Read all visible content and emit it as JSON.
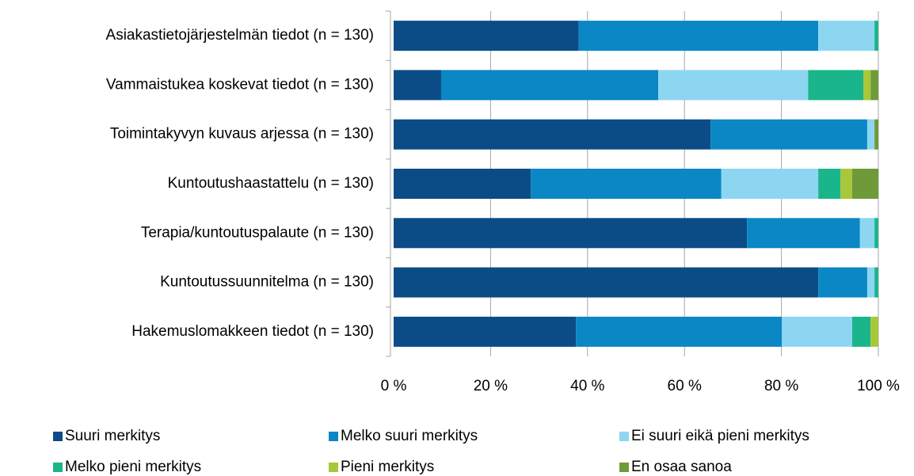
{
  "chart_data": {
    "type": "stacked-bar-horizontal",
    "categories": [
      "Asiakastietojärjestelmän tiedot (n = 130)",
      "Vammaistukea koskevat tiedot (n = 130)",
      "Toimintakyvyn kuvaus arjessa (n = 130)",
      "Kuntoutushaastattelu (n = 130)",
      "Terapia/kuntoutuspalaute (n = 130)",
      "Kuntoutussuunnitelma (n = 130)",
      "Hakemuslomakkeen tiedot (n = 130)"
    ],
    "series": [
      {
        "name": "Suuri merkitys",
        "color": "#0b4c86",
        "values": [
          38.2,
          9.8,
          65.4,
          28.3,
          72.9,
          87.6,
          37.6
        ]
      },
      {
        "name": "Melko suuri merkitys",
        "color": "#0a87c4",
        "values": [
          49.4,
          44.8,
          32.3,
          39.3,
          23.3,
          10.1,
          42.5
        ]
      },
      {
        "name": "Ei suuri eikä pieni merkitys",
        "color": "#8dd6f2",
        "values": [
          11.6,
          30.9,
          1.5,
          20,
          3,
          1.5,
          14.5
        ]
      },
      {
        "name": "Melko pieni merkitys",
        "color": "#1bb58b",
        "values": [
          0.8,
          11.4,
          0,
          4.6,
          0.8,
          0.8,
          3.8
        ]
      },
      {
        "name": "Pieni merkitys",
        "color": "#a8c73a",
        "values": [
          0,
          1.5,
          0,
          2.4,
          0,
          0,
          1.6
        ]
      },
      {
        "name": "En osaa sanoa",
        "color": "#6e9a3a",
        "values": [
          0,
          1.6,
          0.8,
          5.4,
          0,
          0,
          0
        ]
      }
    ],
    "xlim": [
      0,
      100
    ],
    "xticks": [
      {
        "value": 0,
        "label": "0 %"
      },
      {
        "value": 20,
        "label": "20 %"
      },
      {
        "value": 40,
        "label": "40 %"
      },
      {
        "value": 60,
        "label": "60 %"
      },
      {
        "value": 80,
        "label": "80 %"
      },
      {
        "value": 100,
        "label": "100 %"
      }
    ],
    "grid": true
  }
}
